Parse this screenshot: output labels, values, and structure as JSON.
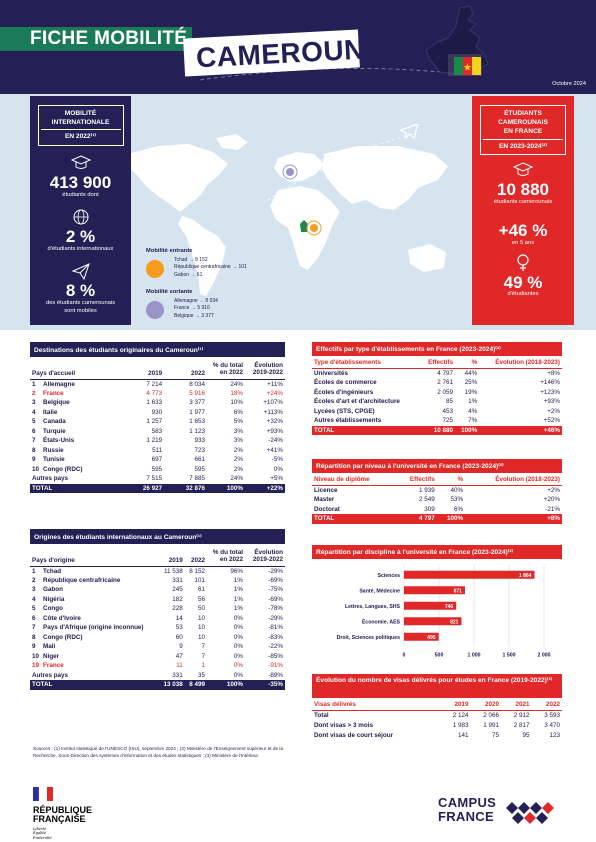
{
  "header": {
    "title": "FICHE MOBILITÉ",
    "country": "CAMEROUN",
    "date": "Octobre 2024"
  },
  "left_panel": {
    "title_lines": [
      "MOBILITÉ",
      "INTERNATIONALE",
      "EN 2022⁽¹⁾"
    ],
    "stat1_value": "413 900",
    "stat1_label": "étudiants dont",
    "stat2_value": "2 %",
    "stat2_label": "d'étudiants internationaux",
    "stat3_value": "8 %",
    "stat3_label_1": "des étudiants camerounais",
    "stat3_label_2": "sont mobiles"
  },
  "right_panel": {
    "title_lines": [
      "ÉTUDIANTS",
      "CAMEROUNAIS",
      "EN FRANCE",
      "EN 2023-2024⁽²⁾"
    ],
    "stat1_value": "10 880",
    "stat1_label": "étudiants camerounais",
    "stat2_value": "+46 %",
    "stat2_label": "en 5 ans",
    "stat3_value": "49 %",
    "stat3_label": "d'étudiantes"
  },
  "mobility": {
    "incoming": {
      "title": "Mobilité entrante",
      "lines": [
        "Tchad → 8 152",
        "République centrafricaine → 101",
        "Gabon → 61"
      ],
      "color": "#f39c1f"
    },
    "outgoing": {
      "title": "Mobilité sortante",
      "lines": [
        "Allemagne → 8 034",
        "France → 5 916",
        "Belgique → 3 377"
      ],
      "color": "#9b94c9"
    }
  },
  "destinations": {
    "title": "Destinations des étudiants originaires du Cameroun⁽¹⁾",
    "headers": [
      "Pays d'accueil",
      "2019",
      "2022",
      "% du total en 2022",
      "Évolution 2019-2022"
    ],
    "rows": [
      {
        "rank": "1",
        "name": "Allemagne",
        "y2019": "7 214",
        "y2022": "8 034",
        "pct": "24%",
        "evo": "+11%"
      },
      {
        "rank": "2",
        "name": "France",
        "y2019": "4 773",
        "y2022": "5 916",
        "pct": "18%",
        "evo": "+24%"
      },
      {
        "rank": "3",
        "name": "Belgique",
        "y2019": "1 633",
        "y2022": "3 377",
        "pct": "10%",
        "evo": "+107%"
      },
      {
        "rank": "4",
        "name": "Italie",
        "y2019": "930",
        "y2022": "1 977",
        "pct": "6%",
        "evo": "+113%"
      },
      {
        "rank": "5",
        "name": "Canada",
        "y2019": "1 257",
        "y2022": "1 653",
        "pct": "5%",
        "evo": "+32%"
      },
      {
        "rank": "6",
        "name": "Turquie",
        "y2019": "583",
        "y2022": "1 123",
        "pct": "3%",
        "evo": "+93%"
      },
      {
        "rank": "7",
        "name": "États-Unis",
        "y2019": "1 219",
        "y2022": "933",
        "pct": "3%",
        "evo": "-24%"
      },
      {
        "rank": "8",
        "name": "Russie",
        "y2019": "511",
        "y2022": "723",
        "pct": "2%",
        "evo": "+41%"
      },
      {
        "rank": "9",
        "name": "Tunisie",
        "y2019": "697",
        "y2022": "661",
        "pct": "2%",
        "evo": "-5%"
      },
      {
        "rank": "10",
        "name": "Congo (RDC)",
        "y2019": "595",
        "y2022": "595",
        "pct": "2%",
        "evo": "0%"
      }
    ],
    "other": {
      "name": "Autres pays",
      "y2019": "7 515",
      "y2022": "7 885",
      "pct": "24%",
      "evo": "+5%"
    },
    "total": {
      "name": "TOTAL",
      "y2019": "26 927",
      "y2022": "32 876",
      "pct": "100%",
      "evo": "+22%"
    }
  },
  "origins": {
    "title": "Origines des étudiants internationaux au Cameroun⁽¹⁾",
    "headers": [
      "Pays d'origine",
      "2019",
      "2022",
      "% du total en 2022",
      "Évolution 2019-2022"
    ],
    "rows": [
      {
        "rank": "1",
        "name": "Tchad",
        "y2019": "11 538",
        "y2022": "8 152",
        "pct": "96%",
        "evo": "-29%"
      },
      {
        "rank": "2",
        "name": "République centrafricaine",
        "y2019": "331",
        "y2022": "101",
        "pct": "1%",
        "evo": "-69%"
      },
      {
        "rank": "3",
        "name": "Gabon",
        "y2019": "245",
        "y2022": "61",
        "pct": "1%",
        "evo": "-75%"
      },
      {
        "rank": "4",
        "name": "Nigéria",
        "y2019": "182",
        "y2022": "56",
        "pct": "1%",
        "evo": "-69%"
      },
      {
        "rank": "5",
        "name": "Congo",
        "y2019": "228",
        "y2022": "50",
        "pct": "1%",
        "evo": "-78%"
      },
      {
        "rank": "6",
        "name": "Côte d'Ivoire",
        "y2019": "14",
        "y2022": "10",
        "pct": "0%",
        "evo": "-29%"
      },
      {
        "rank": "7",
        "name": "Pays d'Afrique (origine inconnue)",
        "y2019": "53",
        "y2022": "10",
        "pct": "0%",
        "evo": "-81%"
      },
      {
        "rank": "8",
        "name": "Congo (RDC)",
        "y2019": "60",
        "y2022": "10",
        "pct": "0%",
        "evo": "-83%"
      },
      {
        "rank": "9",
        "name": "Mali",
        "y2019": "9",
        "y2022": "7",
        "pct": "0%",
        "evo": "-22%"
      },
      {
        "rank": "10",
        "name": "Niger",
        "y2019": "47",
        "y2022": "7",
        "pct": "0%",
        "evo": "-85%"
      },
      {
        "rank": "19",
        "name": "France",
        "y2019": "11",
        "y2022": "1",
        "pct": "0%",
        "evo": "-91%"
      }
    ],
    "other": {
      "name": "Autres pays",
      "y2019": "331",
      "y2022": "35",
      "pct": "0%",
      "evo": "-89%"
    },
    "total": {
      "name": "TOTAL",
      "y2019": "13 038",
      "y2022": "8 499",
      "pct": "100%",
      "evo": "-35%"
    }
  },
  "types": {
    "title": "Effectifs par type d'établissements en France (2023-2024)⁽²⁾",
    "headers": [
      "Type d'établissements",
      "Effectifs",
      "%",
      "Évolution (2018-2023)"
    ],
    "rows": [
      {
        "name": "Universités",
        "n": "4 797",
        "pct": "44%",
        "evo": "+8%"
      },
      {
        "name": "Écoles de commerce",
        "n": "2 761",
        "pct": "25%",
        "evo": "+146%"
      },
      {
        "name": "Écoles d'ingénieurs",
        "n": "2 059",
        "pct": "19%",
        "evo": "+123%"
      },
      {
        "name": "Écoles d'art et d'architecture",
        "n": "85",
        "pct": "1%",
        "evo": "+93%"
      },
      {
        "name": "Lycées (STS, CPGE)",
        "n": "453",
        "pct": "4%",
        "evo": "+2%"
      },
      {
        "name": "Autres établissements",
        "n": "725",
        "pct": "7%",
        "evo": "+52%"
      }
    ],
    "total": {
      "name": "TOTAL",
      "n": "10 880",
      "pct": "100%",
      "evo": "+46%"
    }
  },
  "levels": {
    "title": "Répartition par niveau à l'université en France (2023-2024)⁽²⁾",
    "headers": [
      "Niveau de diplôme",
      "Effectifs",
      "%",
      "Évolution (2018-2023)"
    ],
    "rows": [
      {
        "name": "Licence",
        "n": "1 939",
        "pct": "40%",
        "evo": "+2%"
      },
      {
        "name": "Master",
        "n": "2 549",
        "pct": "53%",
        "evo": "+20%"
      },
      {
        "name": "Doctorat",
        "n": "309",
        "pct": "6%",
        "evo": "-21%"
      }
    ],
    "total": {
      "name": "TOTAL",
      "n": "4 797",
      "pct": "100%",
      "evo": "+8%"
    }
  },
  "chart_data": {
    "type": "bar",
    "orientation": "horizontal",
    "title": "Répartition par discipline à l'université en France (2023-2024)⁽²⁾",
    "categories": [
      "Sciences",
      "Santé, Médecine",
      "Lettres, Langues, SHS",
      "Économie, AES",
      "Droit, Sciences politiques"
    ],
    "values": [
      1864,
      871,
      746,
      821,
      495
    ],
    "value_labels": [
      "1 864",
      "871",
      "746",
      "821",
      "495"
    ],
    "xlim": [
      0,
      2000
    ],
    "xticks": [
      "0",
      "500",
      "1 000",
      "1 500",
      "2 000"
    ],
    "tick_values": [
      0,
      500,
      1000,
      1500,
      2000
    ],
    "bar_color": "#e02828",
    "grid": true
  },
  "visas": {
    "title": "Évolution du nombre de visas délivrés pour études en France (2019-2022)⁽³⁾",
    "headers": [
      "Visas délivrés",
      "2019",
      "2020",
      "2021",
      "2022"
    ],
    "rows": [
      {
        "name": "Total",
        "v": [
          "2 124",
          "2 066",
          "2 912",
          "3 593"
        ]
      },
      {
        "name": "Dont visas > 3 mois",
        "v": [
          "1 983",
          "1 991",
          "2 817",
          "3 470"
        ]
      },
      {
        "name": "Dont visas de court séjour",
        "v": [
          "141",
          "75",
          "95",
          "123"
        ]
      }
    ]
  },
  "footer": {
    "sources": "Sources : (1) Institut statistique de l'UNESCO (ISU), septembre 2024 ; (2) Ministère de l'Enseignement supérieur et de la Recherche, Sous-Direction des systèmes d'information et des études statistiques ; (3) Ministère de l'Intérieur.",
    "rf_line1": "RÉPUBLIQUE",
    "rf_line2": "FRANÇAISE",
    "rf_motto": [
      "Liberté",
      "Égalité",
      "Fraternité"
    ],
    "cf_line1": "CAMPUS",
    "cf_line2": "FRANCE"
  },
  "colors": {
    "navy": "#241f55",
    "red": "#e02828",
    "green": "#1a7a5a",
    "light_blue": "#d6e4f0"
  }
}
